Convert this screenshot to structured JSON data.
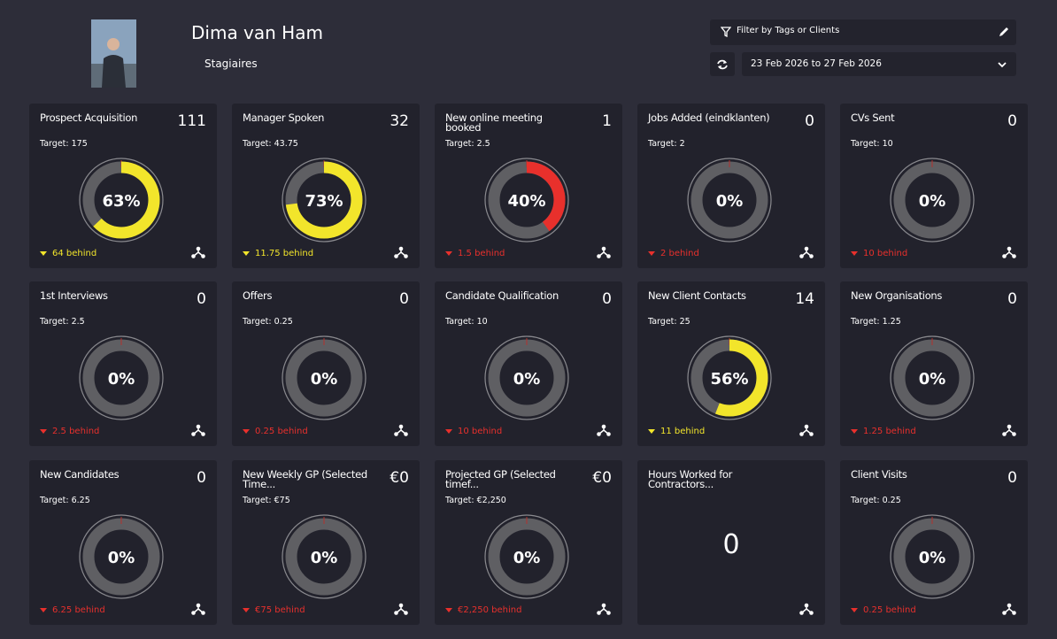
{
  "header": {
    "name": "Dima van Ham",
    "team": "Stagiaires",
    "filter": "Filter by Tags or Clients",
    "date_range": "23 Feb 2026 to 27 Feb 2026"
  },
  "cards": [
    {
      "title": "Prospect Acquisition",
      "value": "111",
      "target": "Target: 175",
      "percent": 63,
      "percent_label": "63%",
      "behind": "64 behind",
      "color": "#f2e52b"
    },
    {
      "title": "Manager Spoken",
      "value": "32",
      "target": "Target: 43.75",
      "percent": 73,
      "percent_label": "73%",
      "behind": "11.75 behind",
      "color": "#f2e52b"
    },
    {
      "title": "New online meeting booked",
      "value": "1",
      "target": "Target: 2.5",
      "percent": 40,
      "percent_label": "40%",
      "behind": "1.5 behind",
      "color": "#e8302c"
    },
    {
      "title": "Jobs Added (eindklanten)",
      "value": "0",
      "target": "Target: 2",
      "percent": 0,
      "percent_label": "0%",
      "behind": "2 behind",
      "color": "#e8302c"
    },
    {
      "title": "CVs Sent",
      "value": "0",
      "target": "Target: 10",
      "percent": 0,
      "percent_label": "0%",
      "behind": "10 behind",
      "color": "#e8302c"
    },
    {
      "title": "1st Interviews",
      "value": "0",
      "target": "Target: 2.5",
      "percent": 0,
      "percent_label": "0%",
      "behind": "2.5 behind",
      "color": "#e8302c"
    },
    {
      "title": "Offers",
      "value": "0",
      "target": "Target: 0.25",
      "percent": 0,
      "percent_label": "0%",
      "behind": "0.25 behind",
      "color": "#e8302c"
    },
    {
      "title": "Candidate Qualification",
      "value": "0",
      "target": "Target: 10",
      "percent": 0,
      "percent_label": "0%",
      "behind": "10 behind",
      "color": "#e8302c"
    },
    {
      "title": "New Client Contacts",
      "value": "14",
      "target": "Target: 25",
      "percent": 56,
      "percent_label": "56%",
      "behind": "11 behind",
      "color": "#f2e52b"
    },
    {
      "title": "New Organisations",
      "value": "0",
      "target": "Target: 1.25",
      "percent": 0,
      "percent_label": "0%",
      "behind": "1.25 behind",
      "color": "#e8302c"
    },
    {
      "title": "New Candidates",
      "value": "0",
      "target": "Target: 6.25",
      "percent": 0,
      "percent_label": "0%",
      "behind": "6.25 behind",
      "color": "#e8302c"
    },
    {
      "title": "New Weekly GP (Selected Time...",
      "value": "€0",
      "target": "Target: €75",
      "percent": 0,
      "percent_label": "0%",
      "behind": "€75 behind",
      "color": "#e8302c"
    },
    {
      "title": "Projected GP (Selected timef...",
      "value": "€0",
      "target": "Target: €2,250",
      "percent": 0,
      "percent_label": "0%",
      "behind": "€2,250 behind",
      "color": "#e8302c"
    },
    {
      "title": "Hours Worked for Contractors...",
      "big_value": "0"
    },
    {
      "title": "Client Visits",
      "value": "0",
      "target": "Target: 0.25",
      "percent": 0,
      "percent_label": "0%",
      "behind": "0.25 behind",
      "color": "#e8302c"
    }
  ]
}
